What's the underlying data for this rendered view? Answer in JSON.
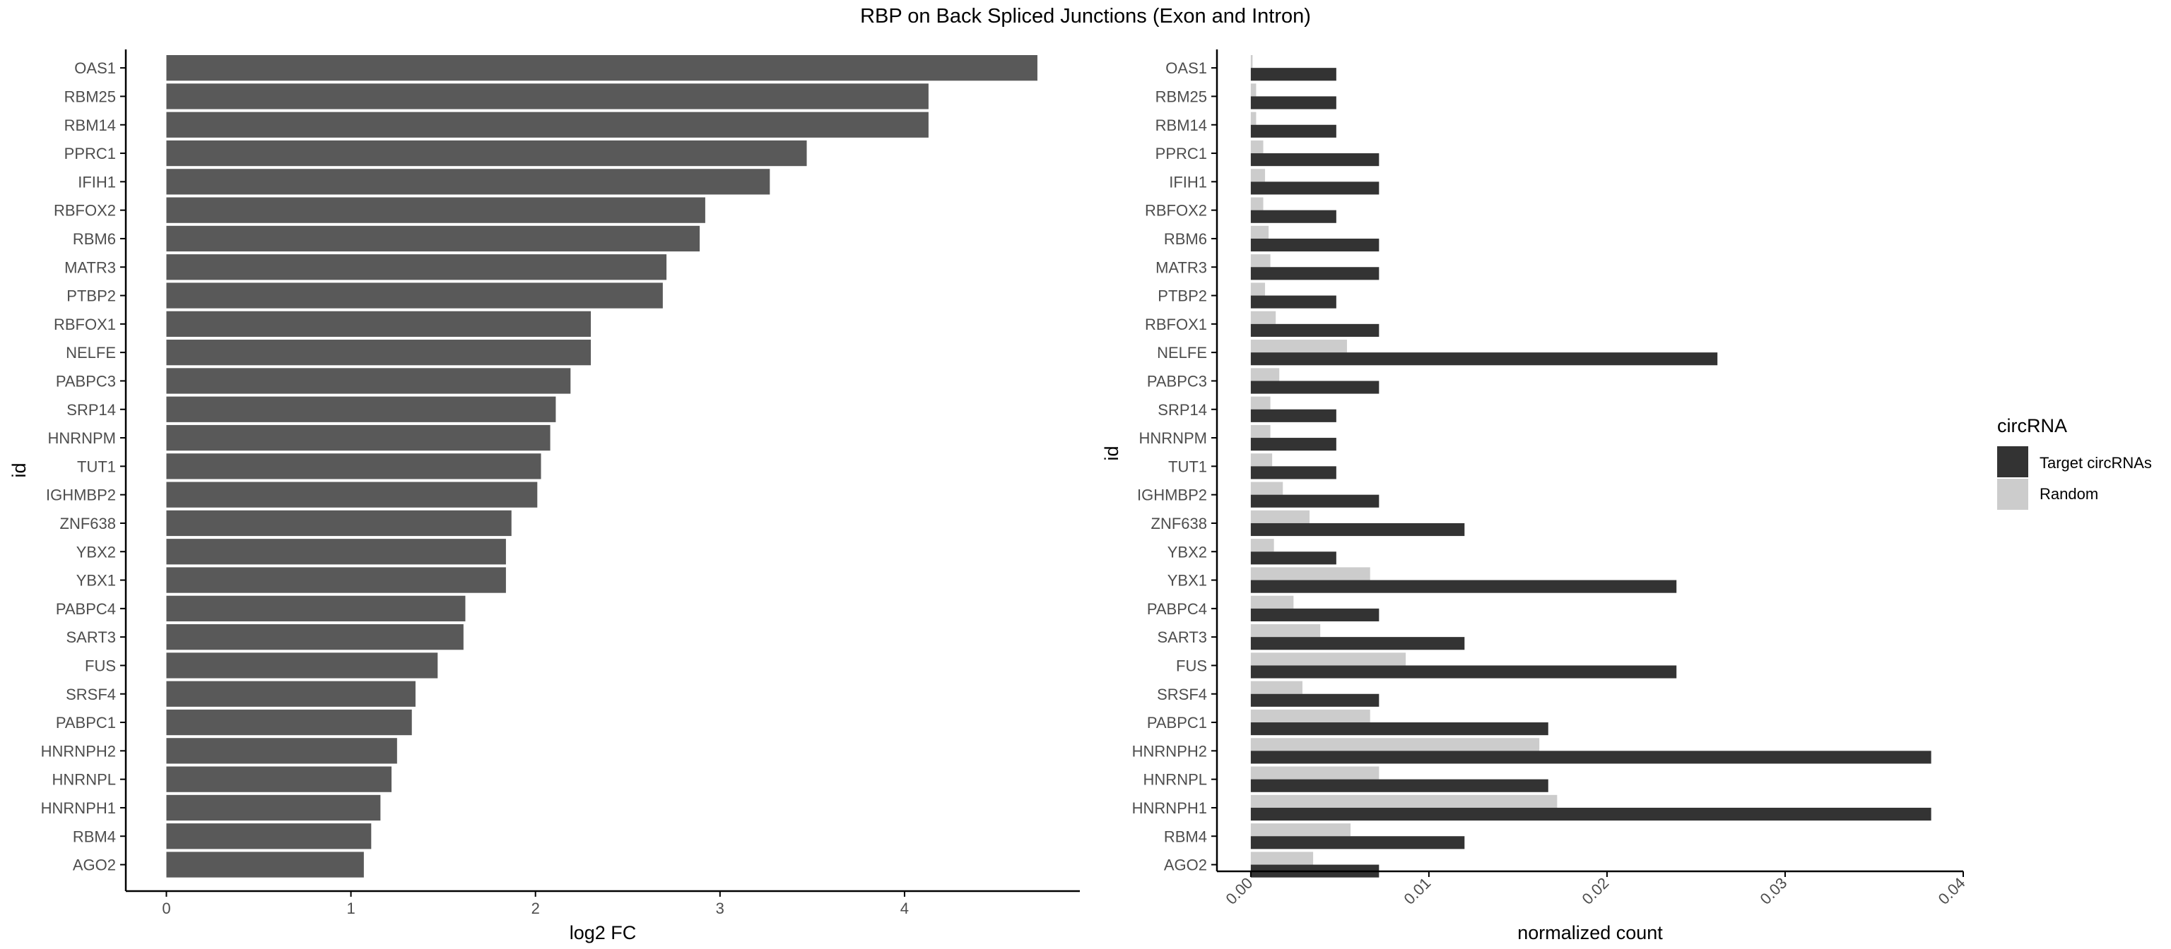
{
  "title": "RBP on Back Spliced Junctions (Exon and Intron)",
  "colors": {
    "left_bar": "#595959",
    "target": "#333333",
    "random": "#cccccc",
    "axis": "#000000",
    "tick_text": "#4d4d4d"
  },
  "chart_data": [
    {
      "type": "bar",
      "orientation": "horizontal",
      "xlabel": "log2 FC",
      "ylabel": "id",
      "xlim": [
        -0.22,
        4.95
      ],
      "xticks": [
        "0",
        "1",
        "2",
        "3",
        "4"
      ],
      "grid": false,
      "categories": [
        "OAS1",
        "RBM25",
        "RBM14",
        "PPRC1",
        "IFIH1",
        "RBFOX2",
        "RBM6",
        "MATR3",
        "PTBP2",
        "RBFOX1",
        "NELFE",
        "PABPC3",
        "SRP14",
        "HNRNPM",
        "TUT1",
        "IGHMBP2",
        "ZNF638",
        "YBX2",
        "YBX1",
        "PABPC4",
        "SART3",
        "FUS",
        "SRSF4",
        "PABPC1",
        "HNRNPH2",
        "HNRNPL",
        "HNRNPH1",
        "RBM4",
        "AGO2"
      ],
      "values": [
        4.72,
        4.13,
        4.13,
        3.47,
        3.27,
        2.92,
        2.89,
        2.71,
        2.69,
        2.3,
        2.3,
        2.19,
        2.11,
        2.08,
        2.03,
        2.01,
        1.87,
        1.84,
        1.84,
        1.62,
        1.61,
        1.47,
        1.35,
        1.33,
        1.25,
        1.22,
        1.16,
        1.11,
        1.07
      ]
    },
    {
      "type": "bar",
      "orientation": "horizontal",
      "xlabel": "normalized count",
      "ylabel": "id",
      "xlim": [
        -0.0019,
        0.04
      ],
      "xticks": [
        "0.00",
        "0.01",
        "0.02",
        "0.03",
        "0.04"
      ],
      "grid": false,
      "legend": {
        "title": "circRNA",
        "position": "right"
      },
      "categories": [
        "OAS1",
        "RBM25",
        "RBM14",
        "PPRC1",
        "IFIH1",
        "RBFOX2",
        "RBM6",
        "MATR3",
        "PTBP2",
        "RBFOX1",
        "NELFE",
        "PABPC3",
        "SRP14",
        "HNRNPM",
        "TUT1",
        "IGHMBP2",
        "ZNF638",
        "YBX2",
        "YBX1",
        "PABPC4",
        "SART3",
        "FUS",
        "SRSF4",
        "PABPC1",
        "HNRNPH2",
        "HNRNPL",
        "HNRNPH1",
        "RBM4",
        "AGO2"
      ],
      "series": [
        {
          "name": "Target circRNAs",
          "values": [
            0.0048,
            0.0048,
            0.0048,
            0.0072,
            0.0072,
            0.0048,
            0.0072,
            0.0072,
            0.0048,
            0.0072,
            0.0262,
            0.0072,
            0.0048,
            0.0048,
            0.0048,
            0.0072,
            0.012,
            0.0048,
            0.0239,
            0.0072,
            0.012,
            0.0239,
            0.0072,
            0.0167,
            0.0382,
            0.0167,
            0.0382,
            0.012,
            0.0072
          ]
        },
        {
          "name": "Random",
          "values": [
            0.0001,
            0.0003,
            0.0003,
            0.0007,
            0.0008,
            0.0007,
            0.001,
            0.0011,
            0.0008,
            0.0014,
            0.0054,
            0.0016,
            0.0011,
            0.0011,
            0.0012,
            0.0018,
            0.0033,
            0.0013,
            0.0067,
            0.0024,
            0.0039,
            0.0087,
            0.0029,
            0.0067,
            0.0162,
            0.0072,
            0.0172,
            0.0056,
            0.0035
          ]
        }
      ]
    }
  ]
}
